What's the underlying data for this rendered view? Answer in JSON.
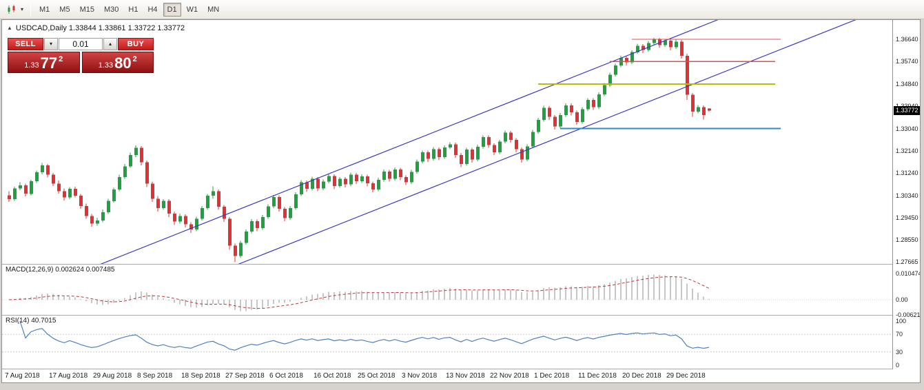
{
  "toolbar": {
    "timeframes": [
      "M1",
      "M5",
      "M15",
      "M30",
      "H1",
      "H4",
      "D1",
      "W1",
      "MN"
    ],
    "active_timeframe": "D1"
  },
  "icons": {
    "caret_down": "▾",
    "caret_up": "▴",
    "collapse_up": "▲"
  },
  "chart": {
    "header": "USDCAD,Daily 1.33844 1.33861 1.33722 1.33772",
    "price_badge": "1.33772"
  },
  "one_click": {
    "sell_label": "SELL",
    "buy_label": "BUY",
    "volume": "0.01",
    "sell_price_small": "1.33",
    "sell_price_big": "77",
    "sell_price_sup": "2",
    "buy_price_small": "1.33",
    "buy_price_big": "80",
    "buy_price_sup": "2"
  },
  "indicators": {
    "macd_label": "MACD(12,26,9) 0.002624 0.007485",
    "rsi_label": "RSI(14) 40.7015"
  },
  "scales": {
    "main": [
      "1.36640",
      "1.35740",
      "1.34840",
      "1.33940",
      "1.33040",
      "1.32140",
      "1.31240",
      "1.30340",
      "1.29450",
      "1.28550",
      "1.27665"
    ],
    "macd": [
      "0.010474",
      "0.00",
      "-0.006218"
    ],
    "rsi": [
      "100",
      "70",
      "30",
      "0"
    ]
  },
  "dates": [
    "7 Aug 2018",
    "17 Aug 2018",
    "29 Aug 2018",
    "8 Sep 2018",
    "18 Sep 2018",
    "27 Sep 2018",
    "6 Oct 2018",
    "16 Oct 2018",
    "25 Oct 2018",
    "3 Nov 2018",
    "13 Nov 2018",
    "22 Nov 2018",
    "1 Dec 2018",
    "11 Dec 2018",
    "20 Dec 2018",
    "29 Dec 2018"
  ],
  "chart_data": {
    "type": "candlestick",
    "symbol": "USDCAD",
    "timeframe": "Daily",
    "ohlc_current": {
      "open": 1.33844,
      "high": 1.33861,
      "low": 1.33722,
      "close": 1.33772
    },
    "colors": {
      "up": "#1fa23d",
      "down": "#e03232",
      "channel": "#3b3bc4",
      "macd_bar": "#8f8f8f",
      "macd_signal": "#c03434",
      "rsi_line": "#4f81bd"
    },
    "candles": [
      [
        1.3035,
        1.3052,
        1.3008,
        1.302
      ],
      [
        1.302,
        1.307,
        1.3012,
        1.3062
      ],
      [
        1.3062,
        1.3088,
        1.3055,
        1.3075
      ],
      [
        1.3075,
        1.3082,
        1.303,
        1.3041
      ],
      [
        1.3041,
        1.3098,
        1.3035,
        1.3092
      ],
      [
        1.3092,
        1.3135,
        1.3085,
        1.3128
      ],
      [
        1.3128,
        1.3166,
        1.312,
        1.3155
      ],
      [
        1.3155,
        1.3161,
        1.3107,
        1.3118
      ],
      [
        1.3118,
        1.3125,
        1.3072,
        1.3082
      ],
      [
        1.3082,
        1.3094,
        1.3042,
        1.3051
      ],
      [
        1.3051,
        1.3063,
        1.3014,
        1.3026
      ],
      [
        1.3026,
        1.3068,
        1.3019,
        1.3061
      ],
      [
        1.3061,
        1.3069,
        1.3026,
        1.3034
      ],
      [
        1.3034,
        1.3041,
        1.2981,
        1.2992
      ],
      [
        1.2992,
        1.3001,
        1.294,
        1.2952
      ],
      [
        1.2952,
        1.296,
        1.2908,
        1.2921
      ],
      [
        1.2921,
        1.2945,
        1.2912,
        1.2933
      ],
      [
        1.2933,
        1.2978,
        1.2926,
        1.2967
      ],
      [
        1.2967,
        1.3021,
        1.296,
        1.3012
      ],
      [
        1.3012,
        1.3066,
        1.3005,
        1.3058
      ],
      [
        1.3058,
        1.3118,
        1.3052,
        1.3109
      ],
      [
        1.3109,
        1.3161,
        1.3102,
        1.3152
      ],
      [
        1.3152,
        1.3207,
        1.3146,
        1.3198
      ],
      [
        1.3198,
        1.3236,
        1.3189,
        1.3226
      ],
      [
        1.3226,
        1.3233,
        1.3155,
        1.3168
      ],
      [
        1.3168,
        1.3175,
        1.3068,
        1.3082
      ],
      [
        1.3082,
        1.309,
        1.3008,
        1.3021
      ],
      [
        1.3021,
        1.3032,
        1.2969,
        1.2983
      ],
      [
        1.2983,
        1.302,
        1.2976,
        1.3012
      ],
      [
        1.3012,
        1.3019,
        1.2948,
        1.2961
      ],
      [
        1.2961,
        1.297,
        1.2916,
        1.2929
      ],
      [
        1.2929,
        1.2961,
        1.2921,
        1.2952
      ],
      [
        1.2952,
        1.2959,
        1.2905,
        1.2918
      ],
      [
        1.2918,
        1.2926,
        1.2883,
        1.2897
      ],
      [
        1.2897,
        1.2949,
        1.289,
        1.2941
      ],
      [
        1.2941,
        1.2992,
        1.2934,
        1.2984
      ],
      [
        1.2984,
        1.3041,
        1.2977,
        1.3033
      ],
      [
        1.3033,
        1.3071,
        1.3021,
        1.3052
      ],
      [
        1.3052,
        1.3059,
        1.2977,
        1.2989
      ],
      [
        1.2989,
        1.2996,
        1.2928,
        1.2941
      ],
      [
        1.2941,
        1.2948,
        1.2815,
        1.2832
      ],
      [
        1.2832,
        1.2841,
        1.2766,
        1.2791
      ],
      [
        1.2791,
        1.2851,
        1.2784,
        1.2843
      ],
      [
        1.2843,
        1.2897,
        1.2836,
        1.2889
      ],
      [
        1.2889,
        1.2939,
        1.2882,
        1.2931
      ],
      [
        1.2931,
        1.2938,
        1.2891,
        1.2903
      ],
      [
        1.2903,
        1.2956,
        1.2896,
        1.2948
      ],
      [
        1.2948,
        1.2999,
        1.2941,
        1.2991
      ],
      [
        1.2991,
        1.3036,
        1.2984,
        1.3028
      ],
      [
        1.3028,
        1.3035,
        1.2969,
        1.2981
      ],
      [
        1.2981,
        1.2988,
        1.2931,
        1.2943
      ],
      [
        1.2943,
        1.2992,
        1.2936,
        1.2984
      ],
      [
        1.2984,
        1.3047,
        1.2977,
        1.3039
      ],
      [
        1.3039,
        1.3096,
        1.3032,
        1.3088
      ],
      [
        1.3088,
        1.3095,
        1.3049,
        1.3061
      ],
      [
        1.3061,
        1.311,
        1.3054,
        1.3102
      ],
      [
        1.3102,
        1.3109,
        1.3051,
        1.3063
      ],
      [
        1.3063,
        1.3099,
        1.3056,
        1.3091
      ],
      [
        1.3091,
        1.312,
        1.3084,
        1.3112
      ],
      [
        1.3112,
        1.3119,
        1.306,
        1.3072
      ],
      [
        1.3072,
        1.3109,
        1.3065,
        1.3101
      ],
      [
        1.3101,
        1.3108,
        1.3067,
        1.3079
      ],
      [
        1.3079,
        1.3126,
        1.3072,
        1.3118
      ],
      [
        1.3118,
        1.3125,
        1.308,
        1.3092
      ],
      [
        1.3092,
        1.3119,
        1.3085,
        1.3111
      ],
      [
        1.3111,
        1.3118,
        1.3071,
        1.3083
      ],
      [
        1.3083,
        1.309,
        1.3047,
        1.3059
      ],
      [
        1.3059,
        1.3106,
        1.3052,
        1.3098
      ],
      [
        1.3098,
        1.3139,
        1.3091,
        1.3131
      ],
      [
        1.3131,
        1.3138,
        1.309,
        1.3102
      ],
      [
        1.3102,
        1.3147,
        1.3095,
        1.3139
      ],
      [
        1.3139,
        1.3146,
        1.3096,
        1.3108
      ],
      [
        1.3108,
        1.3115,
        1.3076,
        1.3088
      ],
      [
        1.3088,
        1.3137,
        1.3081,
        1.3129
      ],
      [
        1.3129,
        1.3179,
        1.3122,
        1.3171
      ],
      [
        1.3171,
        1.3216,
        1.3164,
        1.3208
      ],
      [
        1.3208,
        1.3215,
        1.317,
        1.3182
      ],
      [
        1.3182,
        1.3229,
        1.3175,
        1.3221
      ],
      [
        1.3221,
        1.3228,
        1.3177,
        1.3189
      ],
      [
        1.3189,
        1.3236,
        1.3182,
        1.3228
      ],
      [
        1.3228,
        1.3249,
        1.3221,
        1.3241
      ],
      [
        1.3241,
        1.3248,
        1.3186,
        1.3198
      ],
      [
        1.3198,
        1.3205,
        1.3149,
        1.3161
      ],
      [
        1.3161,
        1.3227,
        1.3154,
        1.3219
      ],
      [
        1.3219,
        1.3226,
        1.3167,
        1.3179
      ],
      [
        1.3179,
        1.3239,
        1.3172,
        1.3231
      ],
      [
        1.3231,
        1.3277,
        1.3224,
        1.3269
      ],
      [
        1.3269,
        1.3276,
        1.3226,
        1.3238
      ],
      [
        1.3238,
        1.3245,
        1.3197,
        1.3209
      ],
      [
        1.3209,
        1.3259,
        1.3202,
        1.3251
      ],
      [
        1.3251,
        1.3296,
        1.3244,
        1.3288
      ],
      [
        1.3288,
        1.3295,
        1.3247,
        1.3259
      ],
      [
        1.3259,
        1.3266,
        1.3209,
        1.3221
      ],
      [
        1.3221,
        1.3228,
        1.3167,
        1.3179
      ],
      [
        1.3179,
        1.324,
        1.3172,
        1.3232
      ],
      [
        1.3232,
        1.3299,
        1.3225,
        1.3291
      ],
      [
        1.3291,
        1.3347,
        1.3284,
        1.3339
      ],
      [
        1.3339,
        1.3396,
        1.3332,
        1.3388
      ],
      [
        1.3388,
        1.3395,
        1.3339,
        1.3351
      ],
      [
        1.3351,
        1.3358,
        1.33,
        1.3312
      ],
      [
        1.3312,
        1.3367,
        1.3305,
        1.3359
      ],
      [
        1.3359,
        1.3406,
        1.3352,
        1.3398
      ],
      [
        1.3398,
        1.3405,
        1.3357,
        1.3369
      ],
      [
        1.3369,
        1.3376,
        1.3319,
        1.3331
      ],
      [
        1.3331,
        1.339,
        1.3324,
        1.3382
      ],
      [
        1.3382,
        1.3427,
        1.3375,
        1.3419
      ],
      [
        1.3419,
        1.3426,
        1.3379,
        1.3391
      ],
      [
        1.3391,
        1.345,
        1.3384,
        1.3442
      ],
      [
        1.3442,
        1.3487,
        1.3435,
        1.3479
      ],
      [
        1.3479,
        1.3529,
        1.3472,
        1.3521
      ],
      [
        1.3521,
        1.3566,
        1.3514,
        1.3558
      ],
      [
        1.3558,
        1.3597,
        1.3551,
        1.3589
      ],
      [
        1.3589,
        1.3596,
        1.3559,
        1.3571
      ],
      [
        1.3571,
        1.362,
        1.3564,
        1.3612
      ],
      [
        1.3612,
        1.3646,
        1.3605,
        1.3638
      ],
      [
        1.3638,
        1.3645,
        1.3609,
        1.3621
      ],
      [
        1.3621,
        1.3657,
        1.3614,
        1.3649
      ],
      [
        1.3649,
        1.367,
        1.3642,
        1.3662
      ],
      [
        1.3662,
        1.3669,
        1.3629,
        1.3641
      ],
      [
        1.3641,
        1.3666,
        1.3634,
        1.3658
      ],
      [
        1.3658,
        1.3665,
        1.362,
        1.3632
      ],
      [
        1.3632,
        1.3662,
        1.3625,
        1.3654
      ],
      [
        1.3654,
        1.3661,
        1.3586,
        1.3598
      ],
      [
        1.3598,
        1.3605,
        1.342,
        1.3441
      ],
      [
        1.3441,
        1.3448,
        1.3352,
        1.3372
      ],
      [
        1.3372,
        1.3399,
        1.3365,
        1.3391
      ],
      [
        1.3391,
        1.3398,
        1.3341,
        1.3358
      ],
      [
        1.33844,
        1.33861,
        1.33722,
        1.33772
      ]
    ],
    "trendlines": [
      {
        "name": "channel-upper",
        "color": "#3b3bc4",
        "points": [
          [
            10,
            1.2699
          ],
          [
            130,
            1.3755
          ]
        ]
      },
      {
        "name": "channel-lower",
        "color": "#3b3bc4",
        "points": [
          [
            10,
            1.2479
          ],
          [
            160,
            1.3799
          ]
        ]
      }
    ],
    "hlines": [
      {
        "name": "resistance-1",
        "price": 1.3664,
        "from": 113,
        "to": 140,
        "color": "#e84b4b",
        "width": 1.4
      },
      {
        "name": "resistance-2",
        "price": 1.3574,
        "from": 109,
        "to": 139,
        "color": "#e84b4b",
        "width": 1.4
      },
      {
        "name": "support-yellow",
        "price": 1.3484,
        "from": 96,
        "to": 139,
        "color": "#b3bf00",
        "width": 2
      },
      {
        "name": "support-blue",
        "price": 1.3304,
        "from": 100,
        "to": 140,
        "color": "#2f86d2",
        "width": 2
      }
    ],
    "macd": {
      "fast": 12,
      "slow": 26,
      "signal": 9,
      "current_macd": 0.002624,
      "current_signal": 0.007485
    },
    "rsi": {
      "period": 14,
      "current": 40.7015,
      "levels": [
        70,
        30
      ]
    }
  }
}
